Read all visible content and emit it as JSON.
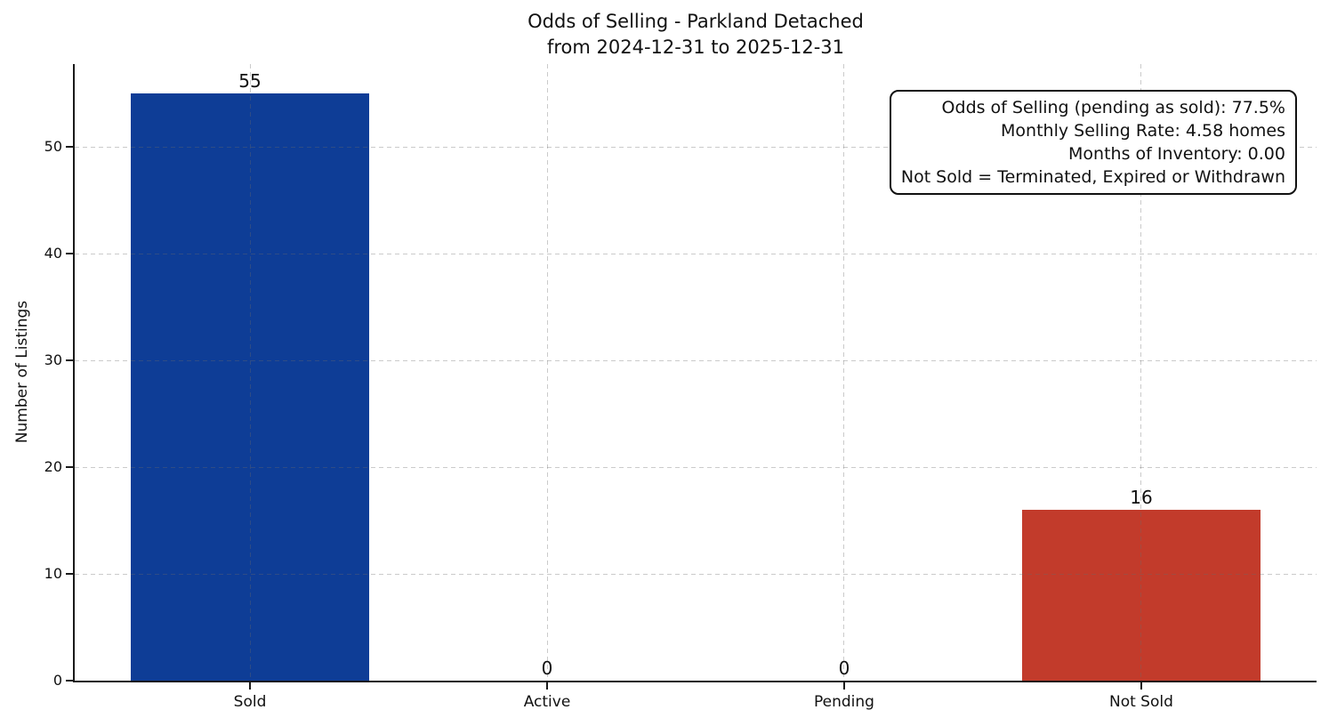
{
  "chart_data": {
    "type": "bar",
    "title": "Odds of Selling - Parkland Detached",
    "subtitle": "from 2024-12-31 to 2025-12-31",
    "ylabel": "Number of Listings",
    "xlabel": "",
    "categories": [
      "Sold",
      "Active",
      "Pending",
      "Not Sold"
    ],
    "values": [
      55,
      0,
      0,
      16
    ],
    "bar_labels": [
      "55",
      "0",
      "0",
      "16"
    ],
    "bar_colors": [
      "#0e3d96",
      null,
      null,
      "#c23b2b"
    ],
    "yticks": [
      0,
      10,
      20,
      30,
      40,
      50
    ],
    "ylim": [
      0,
      57.75
    ],
    "grid": {
      "visible": true,
      "style": "dashed",
      "axes": "both"
    },
    "legend": null,
    "annotations": [
      "Odds of Selling (pending as sold): 77.5%",
      "Monthly Selling Rate: 4.58 homes",
      "Months of Inventory: 0.00",
      "Not Sold = Terminated, Expired or Withdrawn"
    ],
    "colors": {
      "sold_bar": "#0e3d96",
      "not_sold_bar": "#c23b2b",
      "grid": "#d3d3d3",
      "axis": "#1a1a1a",
      "background": "#ffffff"
    }
  }
}
